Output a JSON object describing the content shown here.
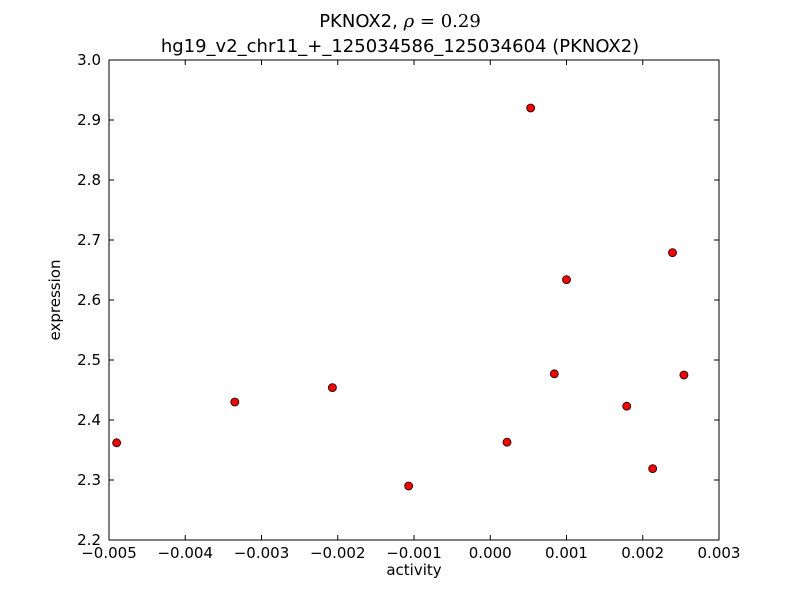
{
  "chart_data": {
    "type": "scatter",
    "title": {
      "prefix": "PKNOX2, ",
      "rho_symbol": "ρ",
      "rho_equals": " = ",
      "rho_value": "0.29",
      "line2": "hg19_v2_chr11_+_125034586_125034604 (PKNOX2)"
    },
    "xlabel": "activity",
    "ylabel": "expression",
    "xlim": [
      -0.005,
      0.003
    ],
    "ylim": [
      2.2,
      3.0
    ],
    "x_ticks": [
      -0.005,
      -0.004,
      -0.003,
      -0.002,
      -0.001,
      0.0,
      0.001,
      0.002,
      0.003
    ],
    "x_tick_labels": [
      "−0.005",
      "−0.004",
      "−0.003",
      "−0.002",
      "−0.001",
      "0.000",
      "0.001",
      "0.002",
      "0.003"
    ],
    "y_ticks": [
      2.2,
      2.3,
      2.4,
      2.5,
      2.6,
      2.7,
      2.8,
      2.9,
      3.0
    ],
    "y_tick_labels": [
      "2.2",
      "2.3",
      "2.4",
      "2.5",
      "2.6",
      "2.7",
      "2.8",
      "2.9",
      "3.0"
    ],
    "grid": false,
    "marker_color": "#ff0000",
    "marker_edge_color": "#000000",
    "points": [
      {
        "x": -0.0049,
        "y": 2.362
      },
      {
        "x": -0.00335,
        "y": 2.43
      },
      {
        "x": -0.00207,
        "y": 2.454
      },
      {
        "x": -0.00107,
        "y": 2.29
      },
      {
        "x": 0.00022,
        "y": 2.363
      },
      {
        "x": 0.00053,
        "y": 2.92
      },
      {
        "x": 0.00084,
        "y": 2.477
      },
      {
        "x": 0.001,
        "y": 2.634
      },
      {
        "x": 0.00179,
        "y": 2.423
      },
      {
        "x": 0.00213,
        "y": 2.319
      },
      {
        "x": 0.00239,
        "y": 2.679
      },
      {
        "x": 0.00254,
        "y": 2.475
      }
    ]
  }
}
